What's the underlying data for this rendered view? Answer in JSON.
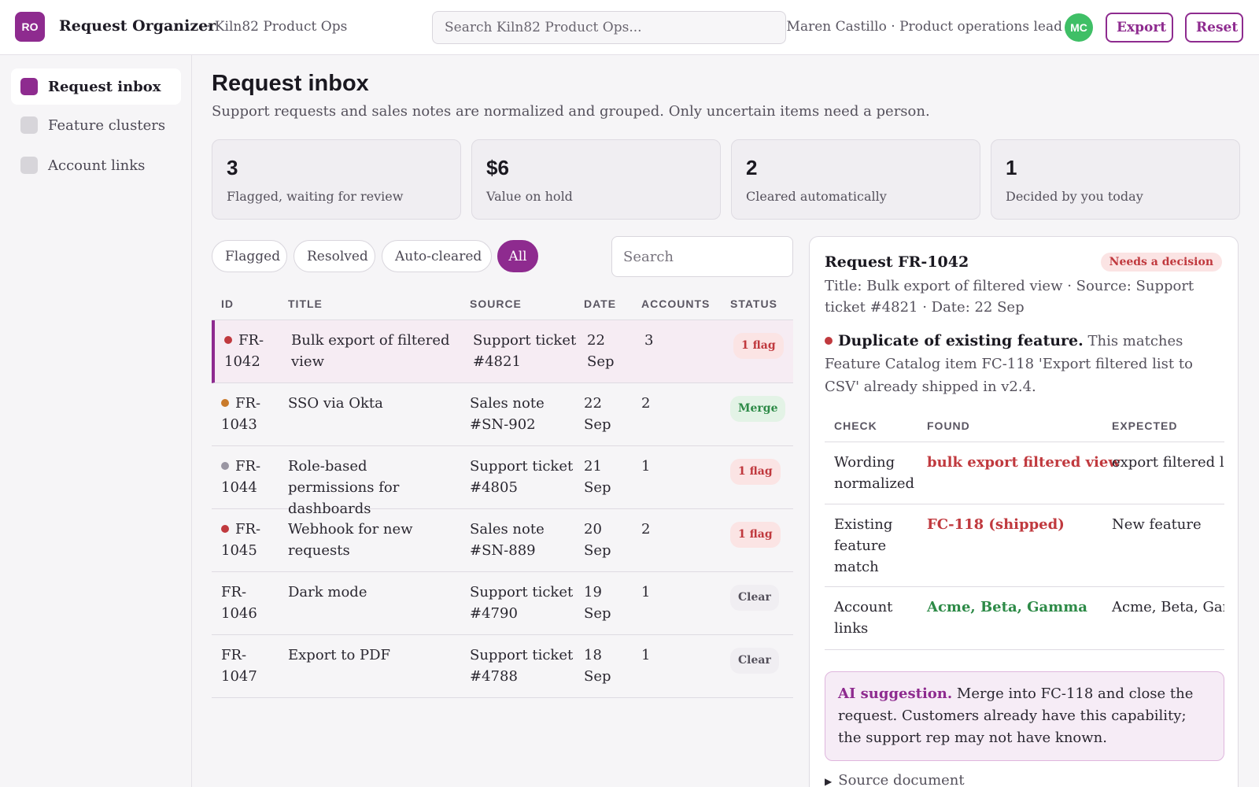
{
  "header": {
    "logo_initials": "RO",
    "app_title": "Request Organizer",
    "workspace": "· Kiln82 Product Ops",
    "search_placeholder": "Search Kiln82 Product Ops...",
    "user": "Maren Castillo · Product operations lead",
    "avatar_initials": "MC",
    "export_label": "Export",
    "reset_label": "Reset"
  },
  "sidebar": {
    "items": [
      {
        "label": "Request inbox",
        "active": true
      },
      {
        "label": "Feature clusters",
        "active": false
      },
      {
        "label": "Account links",
        "active": false
      }
    ]
  },
  "main": {
    "title": "Request inbox",
    "subtitle": "Support requests and sales notes are normalized and grouped. Only uncertain items need a person.",
    "stats": [
      {
        "value": "3",
        "label": "Flagged, waiting for review"
      },
      {
        "value": "$6",
        "label": "Value on hold"
      },
      {
        "value": "2",
        "label": "Cleared automatically"
      },
      {
        "value": "1",
        "label": "Decided by you today"
      }
    ],
    "filters": [
      {
        "label": "Flagged",
        "active": false
      },
      {
        "label": "Resolved",
        "active": false
      },
      {
        "label": "Auto-cleared",
        "active": false
      },
      {
        "label": "All",
        "active": true
      }
    ],
    "table_search_placeholder": "Search",
    "columns": {
      "id": "ID",
      "title": "TITLE",
      "source": "SOURCE",
      "date": "DATE",
      "accounts": "ACCOUNTS",
      "status": "STATUS"
    },
    "rows": [
      {
        "id": "FR-1042",
        "title": "Bulk export of filtered view",
        "source": "Support ticket #4821",
        "date": "22 Sep",
        "accounts": "3",
        "status": "1 flag",
        "status_type": "flag",
        "dot": "#c0393e"
      },
      {
        "id": "FR-1043",
        "title": "SSO via Okta",
        "source": "Sales note #SN-902",
        "date": "22 Sep",
        "accounts": "2",
        "status": "Merge",
        "status_type": "merge",
        "dot": "#c97a2a"
      },
      {
        "id": "FR-1044",
        "title": "Role-based permissions for dashboards",
        "source": "Support ticket #4805",
        "date": "21 Sep",
        "accounts": "1",
        "status": "1 flag",
        "status_type": "flag",
        "dot": "#9a96a3"
      },
      {
        "id": "FR-1045",
        "title": "Webhook for new requests",
        "source": "Sales note #SN-889",
        "date": "20 Sep",
        "accounts": "2",
        "status": "1 flag",
        "status_type": "flag",
        "dot": "#c0393e"
      },
      {
        "id": "FR-1046",
        "title": "Dark mode",
        "source": "Support ticket #4790",
        "date": "19 Sep",
        "accounts": "1",
        "status": "Clear",
        "status_type": "clear",
        "dot": null
      },
      {
        "id": "FR-1047",
        "title": "Export to PDF",
        "source": "Support ticket #4788",
        "date": "18 Sep",
        "accounts": "1",
        "status": "Clear",
        "status_type": "clear",
        "dot": null
      }
    ]
  },
  "detail": {
    "title": "Request FR-1042",
    "badge": "Needs a decision",
    "meta": "Title: Bulk export of filtered view · Source: Support ticket #4821 · Date: 22 Sep",
    "finding_title": "Duplicate of existing feature.",
    "finding_text": "This matches Feature Catalog item FC-118 'Export filtered list to CSV' already shipped in v2.4.",
    "check_columns": {
      "check": "CHECK",
      "found": "FOUND",
      "expected": "EXPECTED"
    },
    "checks": [
      {
        "check": "Wording normalized",
        "found": "bulk export filtered view",
        "expected": "export filtered lis",
        "found_color": "red"
      },
      {
        "check": "Existing feature match",
        "found": "FC-118 (shipped)",
        "expected": "New feature",
        "found_color": "red"
      },
      {
        "check": "Account links",
        "found": "Acme, Beta, Gamma",
        "expected": "Acme, Beta, Gam",
        "found_color": "green"
      }
    ],
    "ai_label": "AI suggestion.",
    "ai_text": "Merge into FC-118 and close the request. Customers already have this capability; the support rep may not have known.",
    "source_toggle": "Source document"
  },
  "colors": {
    "accent": "#8e2b8f",
    "flag": "#c0393e",
    "success": "#2d8a47",
    "avatar": "#3fbf66"
  }
}
